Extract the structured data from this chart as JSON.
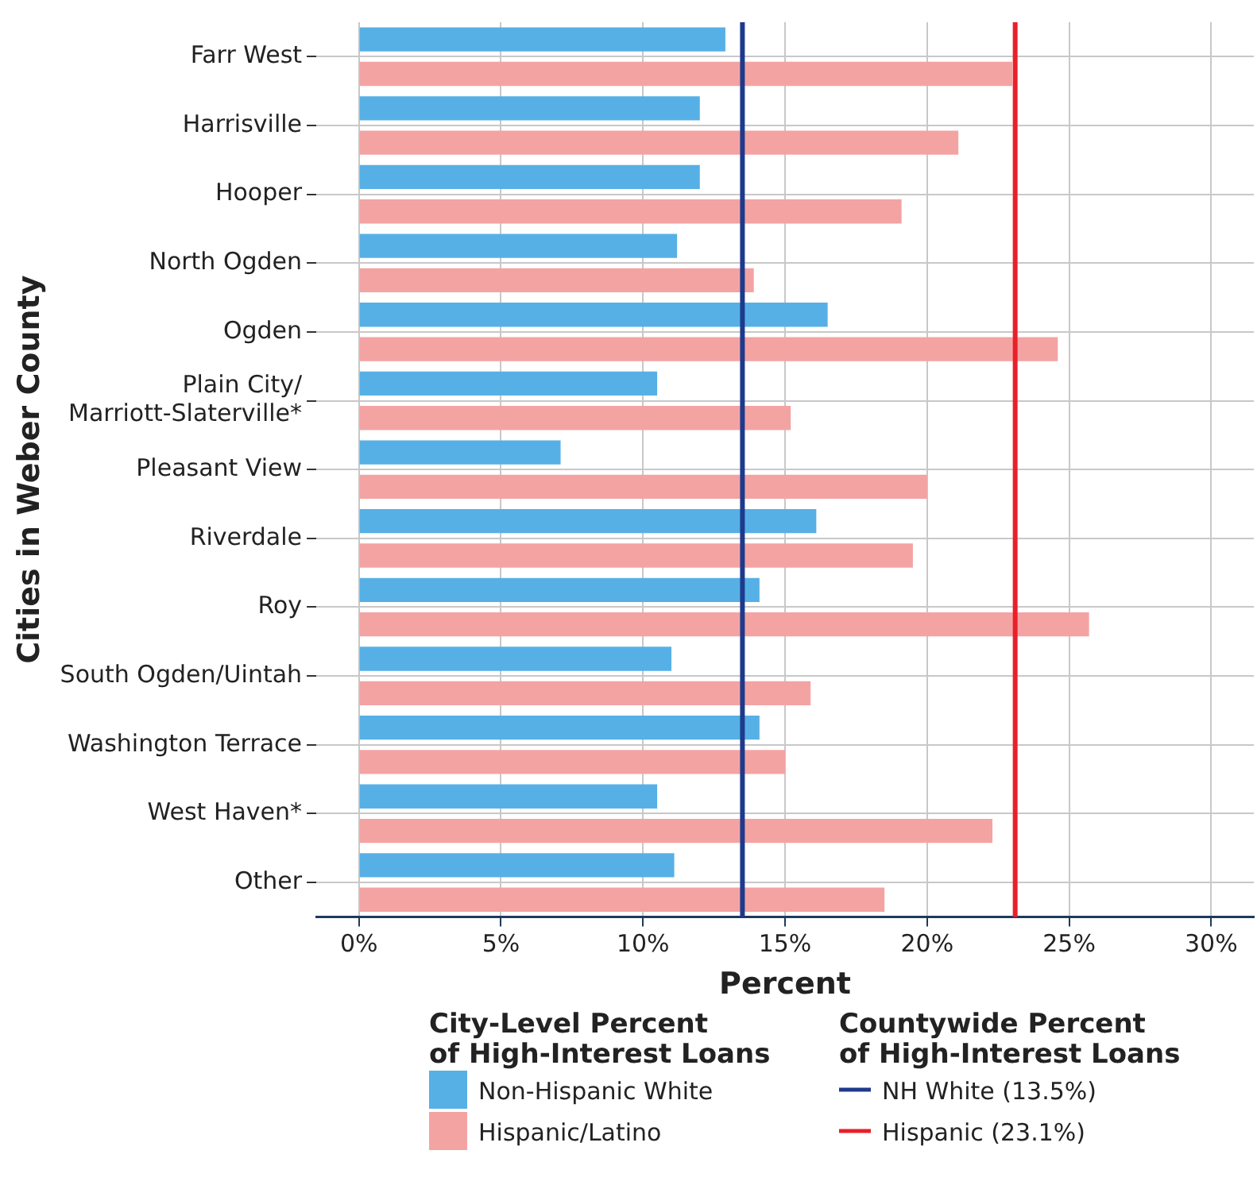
{
  "chart_data": {
    "type": "bar",
    "orientation": "horizontal",
    "ylabel": "Cities in Weber County",
    "xlabel": "Percent",
    "categories": [
      "Farr West",
      "Harrisville",
      "Hooper",
      "North Ogden",
      "Ogden",
      "Plain City/\nMarriott-Slaterville*",
      "Pleasant View",
      "Riverdale",
      "Roy",
      "South Ogden/Uintah",
      "Washington Terrace",
      "West Haven*",
      "Other"
    ],
    "series": [
      {
        "name": "Non-Hispanic White",
        "color": "#56b0e6",
        "values": [
          12.9,
          12.0,
          12.0,
          11.2,
          16.5,
          10.5,
          7.1,
          16.1,
          14.1,
          11.0,
          14.1,
          10.5,
          11.1
        ]
      },
      {
        "name": "Hispanic/Latino",
        "color": "#f4a3a3",
        "values": [
          23.0,
          21.1,
          19.1,
          13.9,
          24.6,
          15.2,
          20.0,
          19.5,
          25.7,
          15.9,
          15.0,
          22.3,
          18.5
        ]
      }
    ],
    "xlim": [
      -1.5,
      31.5
    ],
    "xticks": [
      {
        "value": 0,
        "label": "0%"
      },
      {
        "value": 5,
        "label": "5%"
      },
      {
        "value": 10,
        "label": "10%"
      },
      {
        "value": 15,
        "label": "15%"
      },
      {
        "value": 20,
        "label": "20%"
      },
      {
        "value": 25,
        "label": "25%"
      },
      {
        "value": 30,
        "label": "30%"
      }
    ],
    "ref_lines": [
      {
        "axis": "x",
        "value": 13.5,
        "label": "NH White (13.5%)",
        "color": "#1e3a8c"
      },
      {
        "axis": "x",
        "value": 23.1,
        "label": "Hispanic (23.1%)",
        "color": "#e8202a"
      }
    ],
    "legend_title": "City-Level Percent\nof High-Interest Loans",
    "annotations": [
      "Countywide Percent\nof High-Interest Loans"
    ],
    "legend": "bottom",
    "grid": true
  }
}
